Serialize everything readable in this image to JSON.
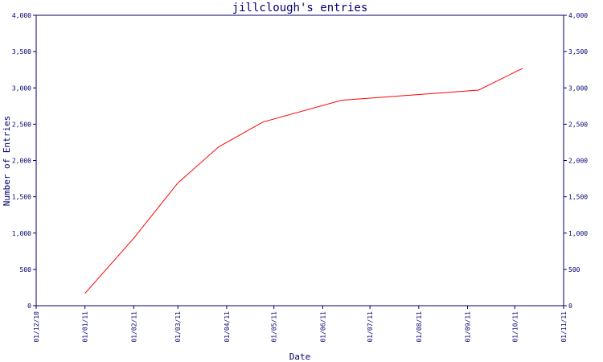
{
  "chart_data": {
    "type": "line",
    "title": "jillclough's entries",
    "xlabel": "Date",
    "ylabel": "Number of Entries",
    "ylim": [
      0,
      4000
    ],
    "xlim": [
      "2010-12-01",
      "2011-11-01"
    ],
    "y_ticks": [
      0,
      500,
      1000,
      1500,
      2000,
      2500,
      3000,
      3500,
      4000
    ],
    "y_tick_labels": [
      "0",
      "500",
      "1,000",
      "1,500",
      "2,000",
      "2,500",
      "3,000",
      "3,500",
      "4,000"
    ],
    "x_ticks": [
      "2010-12-01",
      "2011-01-01",
      "2011-02-01",
      "2011-03-01",
      "2011-04-01",
      "2011-05-01",
      "2011-06-01",
      "2011-07-01",
      "2011-08-01",
      "2011-09-01",
      "2011-10-01",
      "2011-11-01"
    ],
    "x_tick_labels": [
      "01/12/10",
      "01/01/11",
      "01/02/11",
      "01/03/11",
      "01/04/11",
      "01/05/11",
      "01/06/11",
      "01/07/11",
      "01/08/11",
      "01/09/11",
      "01/10/11",
      "01/11/11"
    ],
    "grid": false,
    "legend": "none",
    "series": [
      {
        "color": "#ff0000",
        "x": [
          "2011-01-01",
          "2011-02-01",
          "2011-03-01",
          "2011-03-27",
          "2011-04-24",
          "2011-06-13",
          "2011-09-08",
          "2011-10-06"
        ],
        "y": [
          170,
          930,
          1690,
          2190,
          2530,
          2830,
          2970,
          3270
        ]
      }
    ],
    "colors": {
      "axis": "#00006e",
      "text": "#00006e",
      "background": "#ffffff"
    }
  }
}
